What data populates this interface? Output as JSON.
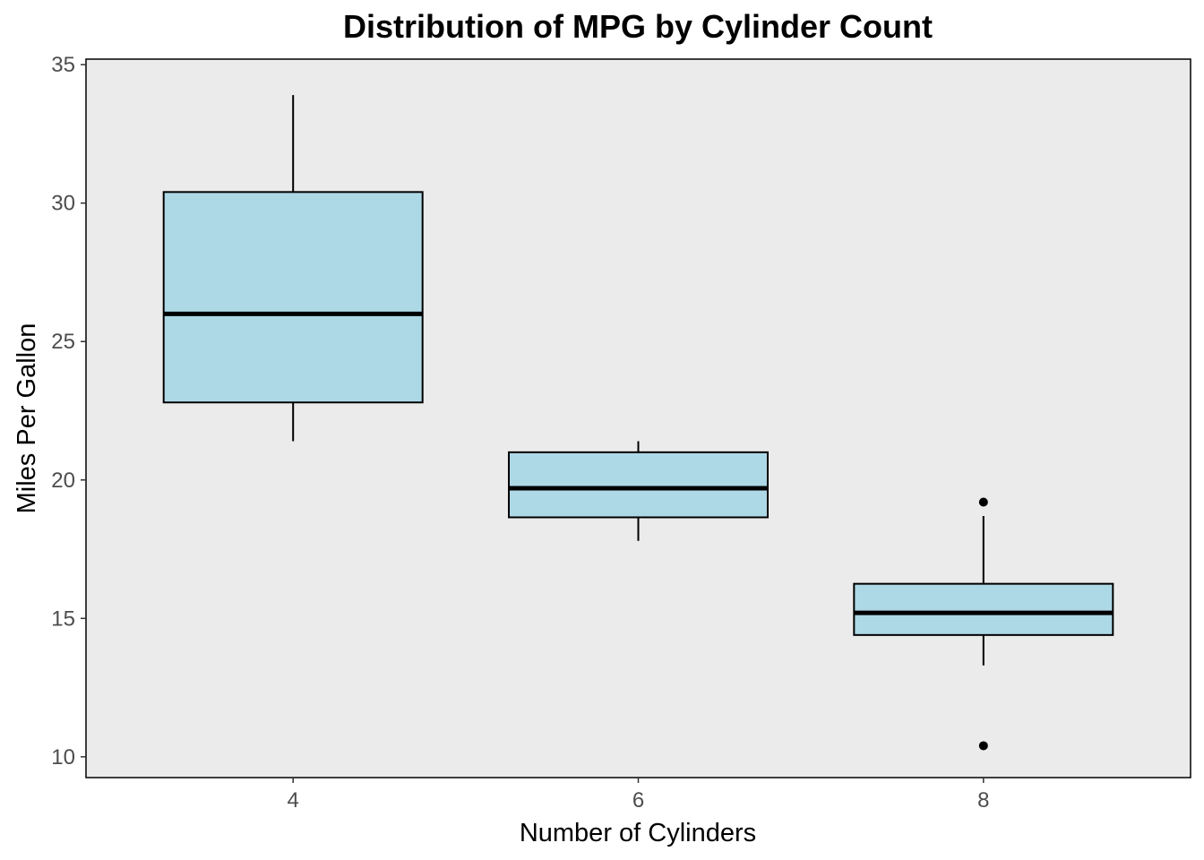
{
  "chart_data": {
    "type": "boxplot",
    "title": "Distribution of MPG by Cylinder Count",
    "xlabel": "Number of Cylinders",
    "ylabel": "Miles Per Gallon",
    "categories": [
      "4",
      "6",
      "8"
    ],
    "x_ticks": [
      "4",
      "6",
      "8"
    ],
    "x_tick_values": [
      4,
      6,
      8
    ],
    "xlim": [
      2.8,
      9.2
    ],
    "ylim": [
      9.25,
      35.2
    ],
    "y_ticks": [
      10,
      15,
      20,
      25,
      30,
      35
    ],
    "y_tick_labels": [
      "10",
      "15",
      "20",
      "25",
      "30",
      "35"
    ],
    "grid": false,
    "legend": "none",
    "series": [
      {
        "x": 4,
        "whisker_low": 21.4,
        "q1": 22.8,
        "median": 26.0,
        "q3": 30.4,
        "whisker_high": 33.9,
        "outliers": []
      },
      {
        "x": 6,
        "whisker_low": 17.8,
        "q1": 18.65,
        "median": 19.7,
        "q3": 21.0,
        "whisker_high": 21.4,
        "outliers": []
      },
      {
        "x": 8,
        "whisker_low": 13.3,
        "q1": 14.4,
        "median": 15.2,
        "q3": 16.25,
        "whisker_high": 18.7,
        "outliers": [
          19.2,
          10.4
        ]
      }
    ],
    "colors": {
      "box_fill": "#add8e6",
      "box_stroke": "#000000",
      "panel_background": "#ebebeb",
      "panel_border": "#000000",
      "tick_label": "#4d4d4d"
    }
  }
}
